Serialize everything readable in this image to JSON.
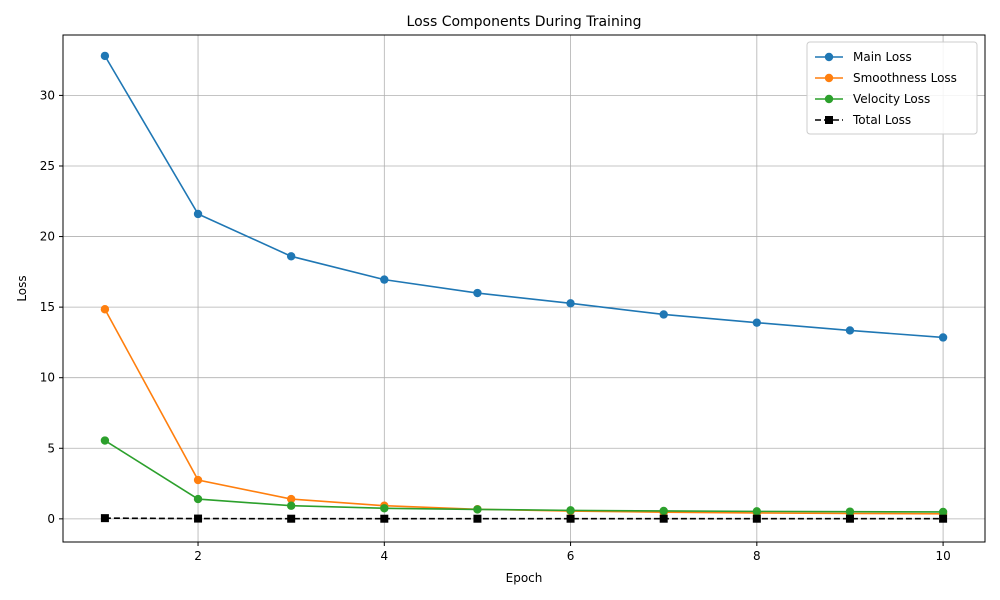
{
  "chart_data": {
    "type": "line",
    "title": "Loss Components During Training",
    "xlabel": "Epoch",
    "ylabel": "Loss",
    "xlim": [
      0.55,
      10.45
    ],
    "ylim": [
      -1.64,
      34.28
    ],
    "xticks": [
      2,
      4,
      6,
      8,
      10
    ],
    "yticks": [
      0,
      5,
      10,
      15,
      20,
      25,
      30
    ],
    "grid": true,
    "legend_position": "top-right",
    "x": [
      1,
      2,
      3,
      4,
      5,
      6,
      7,
      8,
      9,
      10
    ],
    "series": [
      {
        "name": "Main Loss",
        "color": "#1f77b4",
        "marker": "circle",
        "line_style": "solid",
        "values": [
          32.8,
          21.6,
          18.6,
          16.95,
          16.0,
          15.27,
          14.48,
          13.9,
          13.35,
          12.85
        ]
      },
      {
        "name": "Smoothness Loss",
        "color": "#ff7f0e",
        "marker": "circle",
        "line_style": "solid",
        "values": [
          14.85,
          2.75,
          1.4,
          0.93,
          0.68,
          0.55,
          0.47,
          0.42,
          0.38,
          0.36
        ]
      },
      {
        "name": "Velocity Loss",
        "color": "#2ca02c",
        "marker": "circle",
        "line_style": "solid",
        "values": [
          5.55,
          1.4,
          0.93,
          0.75,
          0.67,
          0.6,
          0.56,
          0.53,
          0.51,
          0.49
        ]
      },
      {
        "name": "Total Loss",
        "color": "#000000",
        "marker": "square",
        "line_style": "dashed",
        "values": [
          0.05,
          0.02,
          0.01,
          0.01,
          0.01,
          0.01,
          0.01,
          0.01,
          0.01,
          0.01
        ]
      }
    ]
  }
}
